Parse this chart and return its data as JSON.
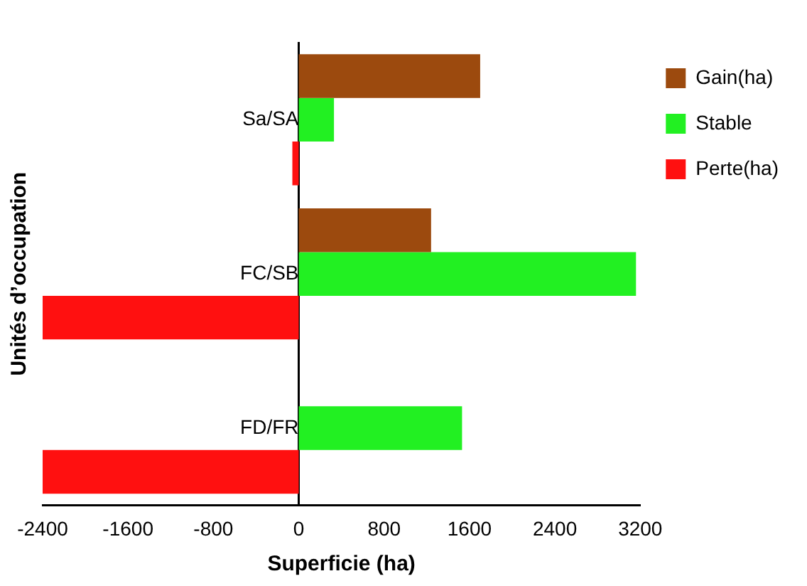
{
  "chart_data": {
    "type": "bar",
    "orientation": "horizontal",
    "xlabel": "Superficie (ha)",
    "ylabel": "Unités d’occupation",
    "categories": [
      "Sa/SA",
      "FC/SB",
      "FD/FR"
    ],
    "series": [
      {
        "name": "Gain(ha)",
        "color": "#9c4a0e",
        "values": [
          1700,
          1240,
          null
        ]
      },
      {
        "name": "Stable",
        "color": "#22f022",
        "values": [
          330,
          3160,
          1530
        ]
      },
      {
        "name": "Perte(ha)",
        "color": "#ff1010",
        "values": [
          -60,
          -2400,
          -2400
        ]
      }
    ],
    "xlim": [
      -2400,
      3200
    ],
    "xticks": [
      -2400,
      -1600,
      -800,
      0,
      800,
      1600,
      2400,
      3200
    ],
    "grid": false,
    "legend": "top right"
  }
}
